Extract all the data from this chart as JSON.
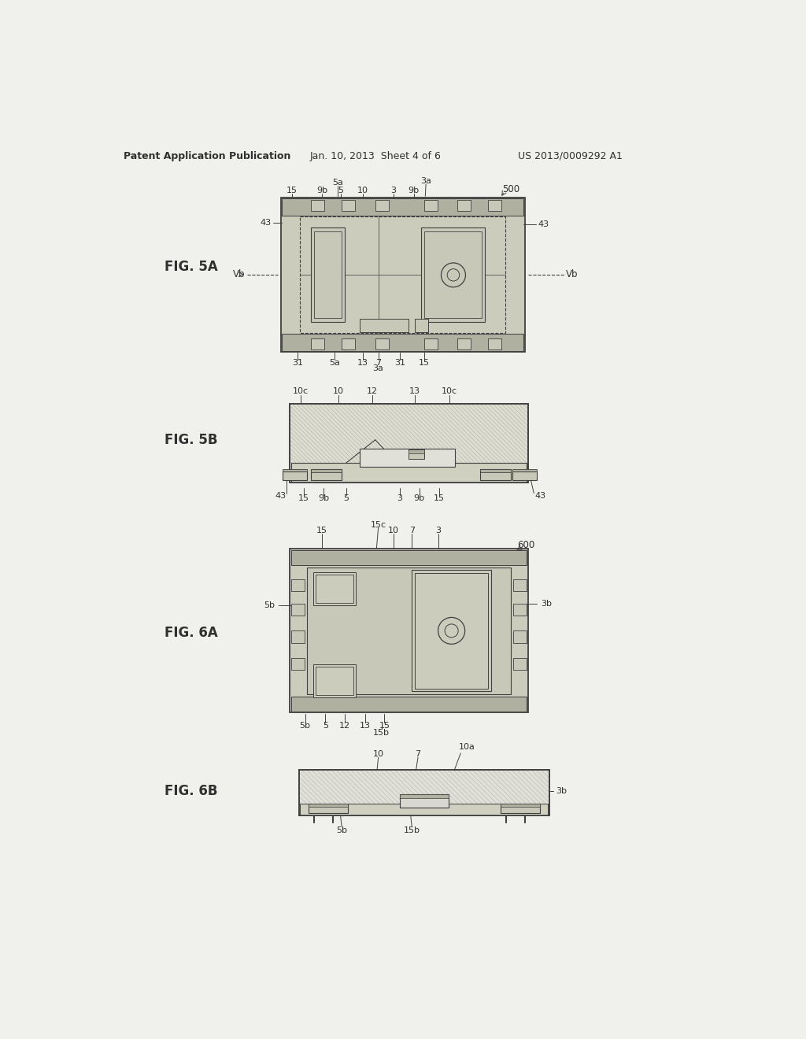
{
  "bg_color": "#f0f0ec",
  "header_left": "Patent Application Publication",
  "header_mid": "Jan. 10, 2013  Sheet 4 of 6",
  "header_right": "US 2013/0009292 A1",
  "fig5a_label": "FIG. 5A",
  "fig5b_label": "FIG. 5B",
  "fig6a_label": "FIG. 6A",
  "fig6b_label": "FIG. 6B",
  "fill_main": "#ccccbc",
  "fill_dark": "#b0b0a0",
  "fill_light": "#ddddd0",
  "fill_inner": "#c8c8b8",
  "fill_pad": "#bebead",
  "fill_hatch_bg": "#e8e8e0",
  "line_color": "#404040",
  "text_color": "#303030"
}
